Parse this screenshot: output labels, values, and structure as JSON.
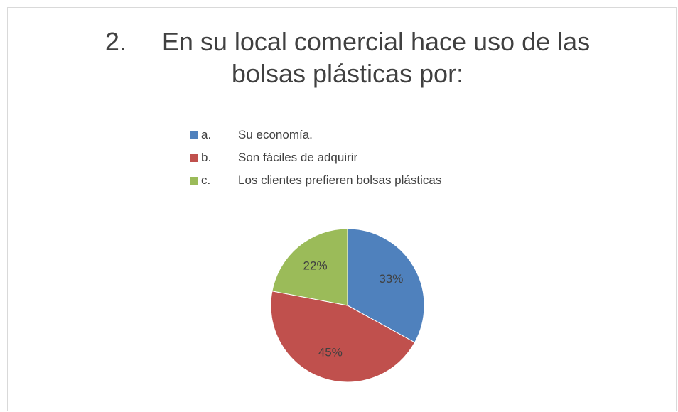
{
  "chart_data": {
    "type": "pie",
    "title": "2.\tEn su local comercial hace uso de las bolsas plásticas por:",
    "categories": [
      "a.\tSu economía.",
      "b.\tSon fáciles de adquirir",
      "c.\tLos clientes prefieren bolsas plásticas"
    ],
    "values": [
      33,
      45,
      22
    ],
    "value_labels": [
      "33%",
      "45%",
      "22%"
    ],
    "colors": [
      "#4f81bd",
      "#c0504d",
      "#9bbb59"
    ],
    "legend": "top"
  }
}
